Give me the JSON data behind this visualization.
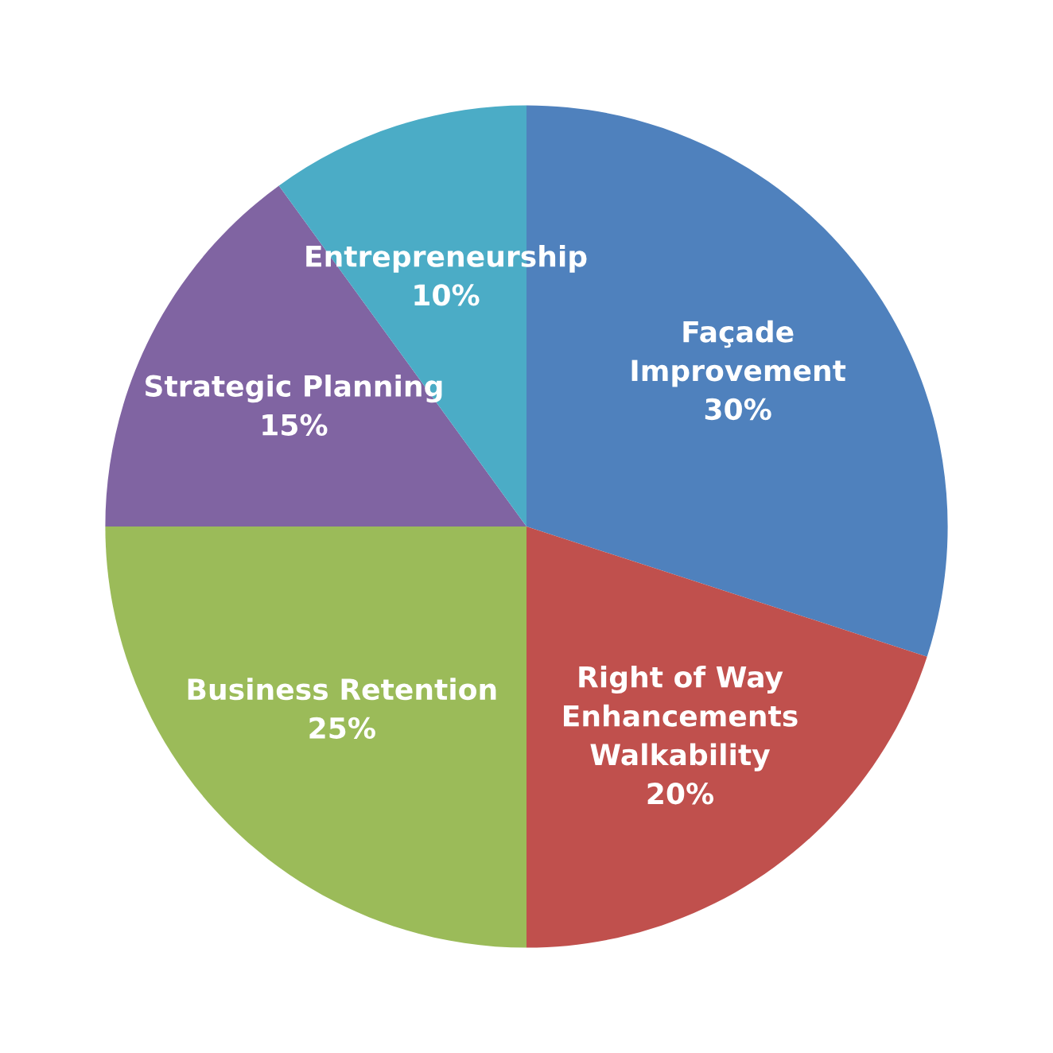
{
  "chart_data": {
    "type": "pie",
    "categories": [
      "Façade\nImprovement",
      "Right of Way\nEnhancements\nWalkability",
      "Business Retention",
      "Strategic Planning",
      "Entrepreneurship"
    ],
    "values": [
      30,
      20,
      25,
      15,
      10
    ],
    "value_labels": [
      "30%",
      "20%",
      "25%",
      "15%",
      "10%"
    ],
    "colors": [
      "#4f81bd",
      "#c0504d",
      "#9bbb59",
      "#8064a2",
      "#4bacc6"
    ],
    "legend": false
  }
}
